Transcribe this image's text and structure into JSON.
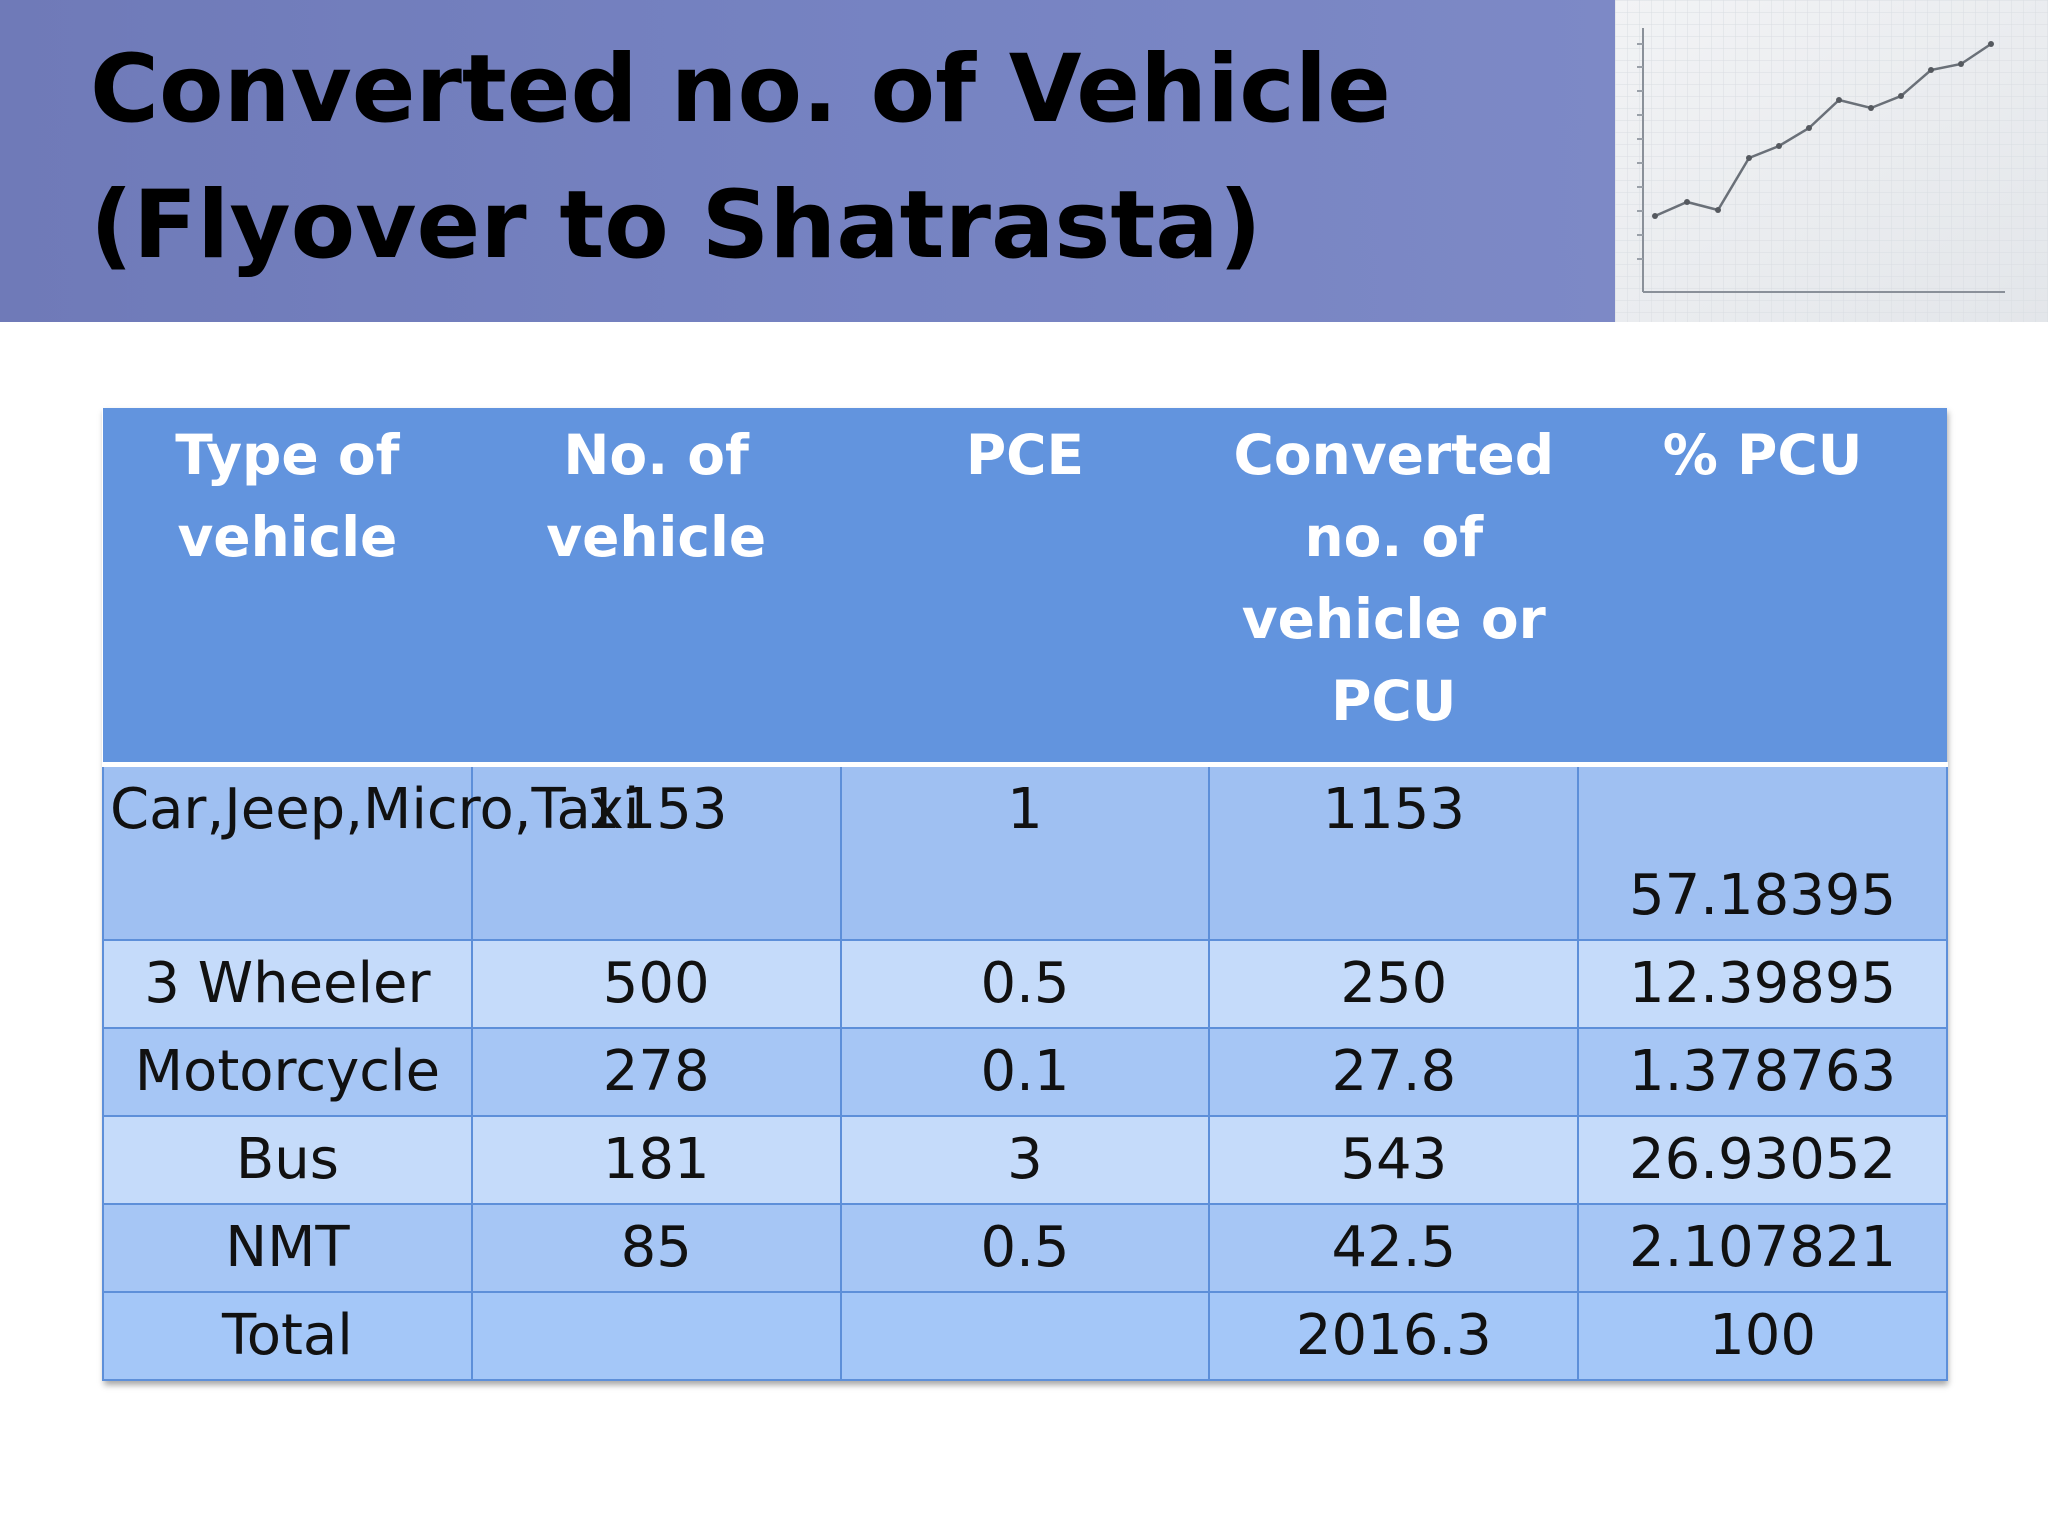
{
  "slide": {
    "title_line1": "Converted no. of Vehicle",
    "title_line2": "(Flyover to Shatrasta)"
  },
  "table": {
    "headers": [
      "Type of vehicle",
      "No. of vehicle",
      "PCE",
      "Converted no. of vehicle or PCU",
      "% PCU"
    ],
    "rows": [
      [
        "Car,Jeep,Micro,Taxi",
        "1153",
        "1",
        "1153",
        "57.18395"
      ],
      [
        "3 Wheeler",
        "500",
        "0.5",
        "250",
        "12.39895"
      ],
      [
        "Motorcycle",
        "278",
        "0.1",
        "27.8",
        "1.378763"
      ],
      [
        "Bus",
        "181",
        "3",
        "543",
        "26.93052"
      ],
      [
        "NMT",
        "85",
        "0.5",
        "42.5",
        "2.107821"
      ],
      [
        "Total",
        "",
        "",
        "2016.3",
        "100"
      ]
    ]
  },
  "colors": {
    "title_band": "#7683c2",
    "header_fill": "#6294de",
    "row_dark": "#a6c6f5",
    "row_light": "#c5dbfa",
    "grid_line": "#5d8fd9"
  },
  "decor_image": {
    "icon": "line-graph-paper-photo"
  }
}
